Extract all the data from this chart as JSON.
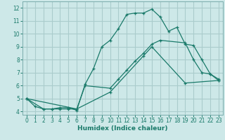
{
  "xlabel": "Humidex (Indice chaleur)",
  "background_color": "#cde8e8",
  "grid_color": "#aacccc",
  "line_color": "#1a7a6a",
  "xlim": [
    -0.5,
    23.5
  ],
  "ylim": [
    3.75,
    12.5
  ],
  "xticks": [
    0,
    1,
    2,
    3,
    4,
    5,
    6,
    7,
    8,
    9,
    10,
    11,
    12,
    13,
    14,
    15,
    16,
    17,
    18,
    19,
    20,
    21,
    22,
    23
  ],
  "yticks": [
    4,
    5,
    6,
    7,
    8,
    9,
    10,
    11,
    12
  ],
  "line1_x": [
    0,
    1,
    2,
    3,
    4,
    5,
    6,
    7,
    8,
    9,
    10,
    11,
    12,
    13,
    14,
    15,
    16,
    17,
    18,
    19,
    20,
    21,
    22,
    23
  ],
  "line1_y": [
    5.0,
    4.4,
    4.2,
    4.2,
    4.3,
    4.3,
    4.1,
    6.1,
    7.3,
    9.0,
    9.5,
    10.4,
    11.5,
    11.6,
    11.6,
    11.9,
    11.3,
    10.2,
    10.5,
    9.2,
    9.1,
    8.0,
    6.9,
    6.5
  ],
  "line2_x": [
    0,
    2,
    3,
    4,
    5,
    6,
    7,
    10,
    11,
    12,
    13,
    14,
    15,
    16,
    19,
    20,
    21,
    22,
    23
  ],
  "line2_y": [
    5.0,
    4.2,
    4.2,
    4.2,
    4.2,
    4.2,
    6.0,
    5.8,
    6.5,
    7.2,
    7.9,
    8.5,
    9.2,
    9.5,
    9.3,
    8.0,
    7.0,
    6.9,
    6.4
  ],
  "line3_x": [
    0,
    6,
    10,
    14,
    15,
    19,
    23
  ],
  "line3_y": [
    5.0,
    4.2,
    5.5,
    8.3,
    9.0,
    6.2,
    6.4
  ]
}
